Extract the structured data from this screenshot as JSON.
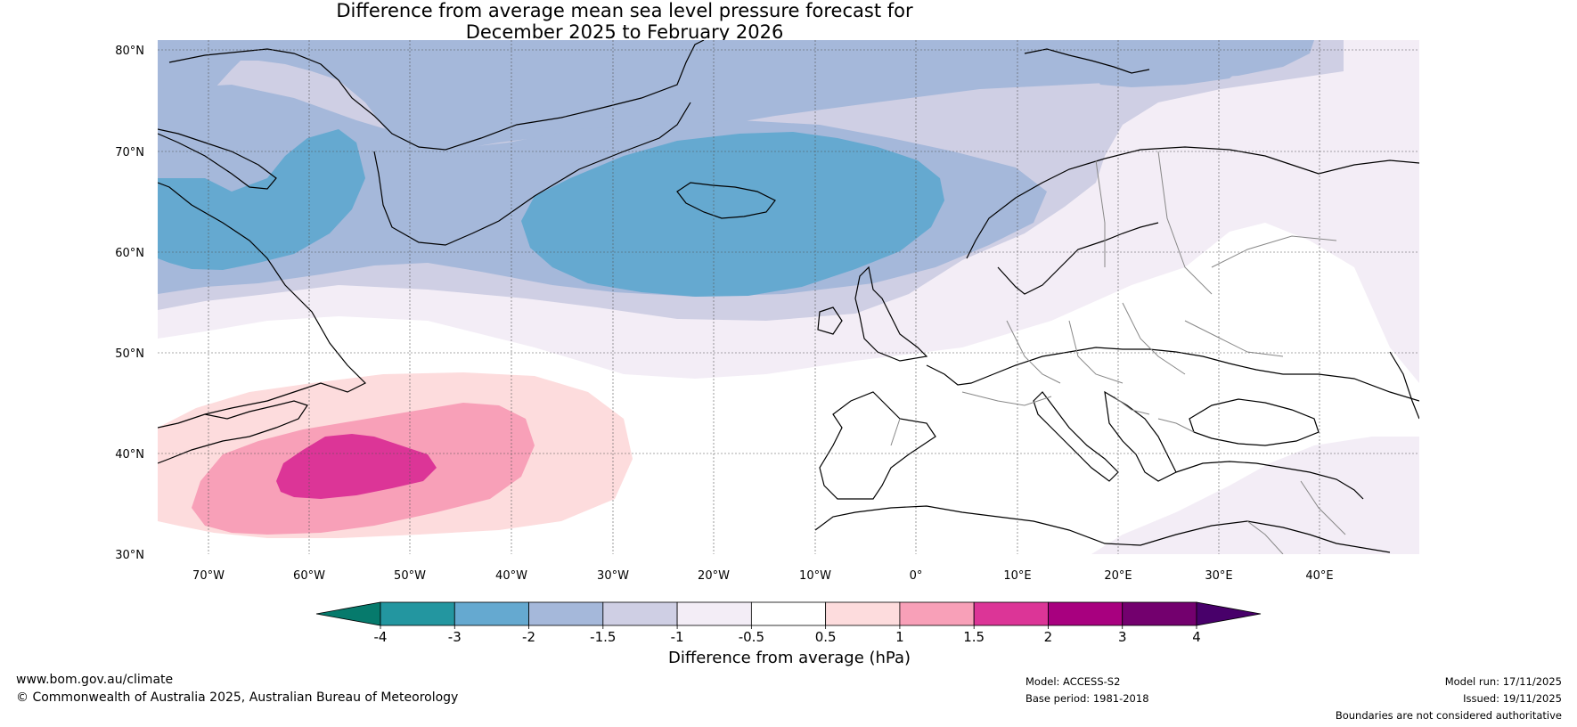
{
  "title": {
    "line1": "Difference from average mean sea level pressure forecast for",
    "line2": "December 2025 to February 2026"
  },
  "map": {
    "lat_labels": [
      "80°N",
      "70°N",
      "60°N",
      "50°N",
      "40°N",
      "30°N"
    ],
    "lon_labels": [
      "70°W",
      "60°W",
      "50°W",
      "40°W",
      "30°W",
      "20°W",
      "10°W",
      "0°",
      "10°E",
      "20°E",
      "30°E",
      "40°E"
    ]
  },
  "colorbar": {
    "tick_labels": [
      "-4",
      "-3",
      "-2",
      "-1.5",
      "-1",
      "-0.5",
      "0.5",
      "1",
      "1.5",
      "2",
      "3",
      "4"
    ],
    "colors": [
      "#067a6c",
      "#2396a0",
      "#65a9d0",
      "#a5b8da",
      "#cfcfe4",
      "#f3edf6",
      "#ffffff",
      "#fddcdd",
      "#f8a0b8",
      "#dc3597",
      "#a8007f",
      "#73006e",
      "#48006a"
    ],
    "label": "Difference from average (hPa)"
  },
  "footer": {
    "website": "www.bom.gov.au/climate",
    "copyright": "© Commonwealth of Australia 2025, Australian Bureau of Meteorology",
    "model": "Model: ACCESS-S2",
    "base_period": "Base period: 1981-2018",
    "model_run": "Model run: 17/11/2025",
    "issued": "Issued: 19/11/2025",
    "disclaimer": "Boundaries are not considered authoritative"
  }
}
